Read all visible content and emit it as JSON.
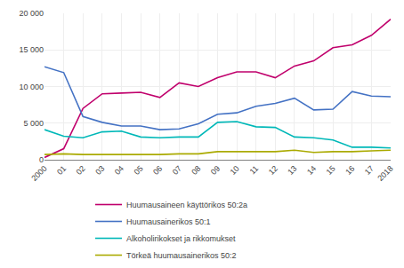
{
  "chart_data": {
    "type": "line",
    "categories": [
      "2000",
      "01",
      "02",
      "03",
      "04",
      "05",
      "06",
      "07",
      "08",
      "09",
      "10",
      "11",
      "12",
      "13",
      "14",
      "15",
      "16",
      "17",
      "2018"
    ],
    "series": [
      {
        "name": "Huumausaineen käyttörikos 50:2a",
        "color": "#c0006c",
        "values": [
          300,
          1500,
          7000,
          9000,
          9100,
          9200,
          8500,
          10500,
          10000,
          11200,
          12000,
          12000,
          11200,
          12800,
          13500,
          15300,
          15700,
          17000,
          19200
        ]
      },
      {
        "name": "Huumausainerikos 50:1",
        "color": "#4472c4",
        "values": [
          12700,
          11900,
          5900,
          5100,
          4600,
          4600,
          4100,
          4200,
          4900,
          6200,
          6400,
          7300,
          7700,
          8400,
          6800,
          6900,
          9300,
          8700,
          8600
        ]
      },
      {
        "name": "Alkoholirikokset ja rikkomukset",
        "color": "#00b8b8",
        "values": [
          4100,
          3200,
          3000,
          3800,
          3900,
          3100,
          3000,
          3100,
          3100,
          5100,
          5200,
          4500,
          4400,
          3100,
          3000,
          2700,
          1700,
          1700,
          1600
        ]
      },
      {
        "name": "Törkeä huumausainerikos 50:2",
        "color": "#aaaa00",
        "values": [
          700,
          800,
          700,
          700,
          700,
          700,
          700,
          800,
          800,
          1100,
          1100,
          1100,
          1100,
          1300,
          1000,
          1100,
          1100,
          1200,
          1300
        ]
      }
    ],
    "ylim": [
      0,
      20000
    ],
    "yticks": [
      0,
      {
        "value": 5000,
        "label": "5 000"
      },
      {
        "value": 10000,
        "label": "10 000"
      },
      {
        "value": 15000,
        "label": "15 000"
      },
      {
        "value": 20000,
        "label": "20 000"
      }
    ],
    "grid": true,
    "legend": "bottom"
  }
}
